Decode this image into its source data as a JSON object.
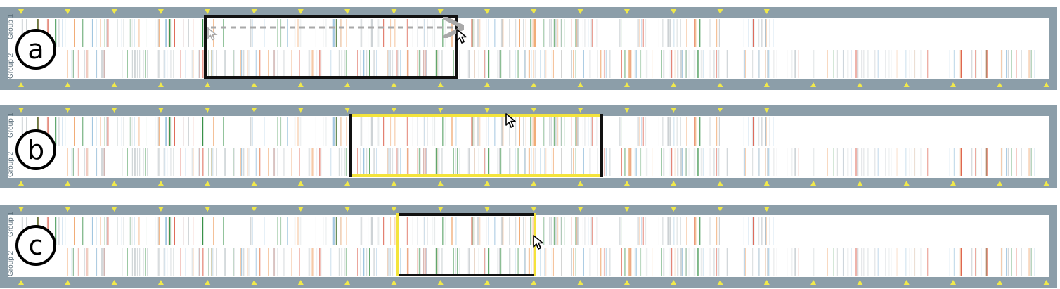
{
  "colors": {
    "frame": "#8c9ea9",
    "track_bg": "#ffffff",
    "marker": "#f1e94a",
    "selection_border": "#111111",
    "selection_highlight": "#f4e43c",
    "drag_arrow": "#a9a9a9",
    "stripe_red": "#d9533f",
    "stripe_green": "#2d8a3e",
    "stripe_orange": "#f0a870",
    "stripe_blue": "#8ab8d8",
    "stripe_gray": "#c9cfd2"
  },
  "track_labels": {
    "group1": "Group 1",
    "group2": "Group 2"
  },
  "marker_counts": {
    "top": 17,
    "bottom": 23
  },
  "panels": [
    {
      "id": "a",
      "label": "a",
      "selection": {
        "style": "dragging",
        "highlight_edges": "none"
      },
      "cursor": "arrow",
      "drag_arrow": true
    },
    {
      "id": "b",
      "label": "b",
      "selection": {
        "style": "move",
        "highlight_edges": "horizontal"
      },
      "cursor": "arrow",
      "drag_arrow": false
    },
    {
      "id": "c",
      "label": "c",
      "selection": {
        "style": "resize",
        "highlight_edges": "vertical"
      },
      "cursor": "arrow",
      "drag_arrow": false
    }
  ]
}
